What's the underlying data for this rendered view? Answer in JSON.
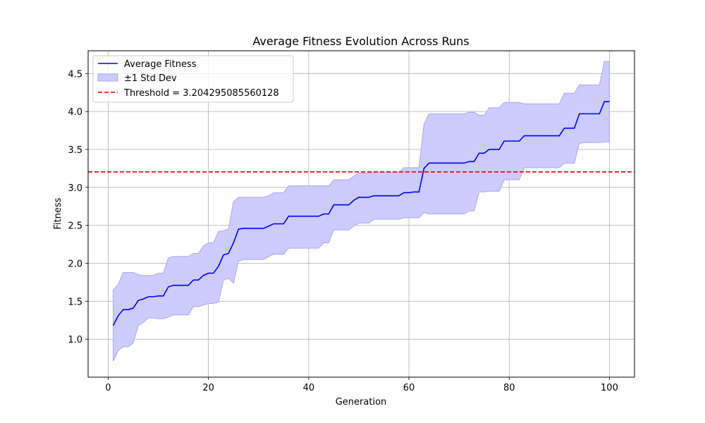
{
  "chart_data": {
    "type": "line",
    "title": "Average Fitness Evolution Across Runs",
    "xlabel": "Generation",
    "ylabel": "Fitness",
    "xlim": [
      -4,
      105
    ],
    "ylim": [
      0.5,
      4.8
    ],
    "xticks": [
      0,
      20,
      40,
      60,
      80,
      100
    ],
    "yticks": [
      1.0,
      1.5,
      2.0,
      2.5,
      3.0,
      3.5,
      4.0,
      4.5
    ],
    "xtick_labels": [
      "0",
      "20",
      "40",
      "60",
      "80",
      "100"
    ],
    "ytick_labels": [
      "1.0",
      "1.5",
      "2.0",
      "2.5",
      "3.0",
      "3.5",
      "4.0",
      "4.5"
    ],
    "grid": true,
    "legend_position": "top-left",
    "legend": [
      "Average Fitness",
      "±1 Std Dev",
      "Threshold = 3.204295085560128"
    ],
    "colors": {
      "mean": "#0000ff",
      "band_fill": "#ccccff",
      "band_edge": "#a8a8f0",
      "threshold": "#e00000"
    },
    "threshold": 3.204295085560128,
    "x": [
      1,
      2,
      3,
      4,
      5,
      6,
      7,
      8,
      9,
      10,
      11,
      12,
      13,
      14,
      15,
      16,
      17,
      18,
      19,
      20,
      21,
      22,
      23,
      24,
      25,
      26,
      27,
      28,
      29,
      30,
      31,
      32,
      33,
      34,
      35,
      36,
      37,
      38,
      39,
      40,
      41,
      42,
      43,
      44,
      45,
      46,
      47,
      48,
      49,
      50,
      51,
      52,
      53,
      54,
      55,
      56,
      57,
      58,
      59,
      60,
      61,
      62,
      63,
      64,
      65,
      66,
      67,
      68,
      69,
      70,
      71,
      72,
      73,
      74,
      75,
      76,
      77,
      78,
      79,
      80,
      81,
      82,
      83,
      84,
      85,
      86,
      87,
      88,
      89,
      90,
      91,
      92,
      93,
      94,
      95,
      96,
      97,
      98,
      99,
      100
    ],
    "series": [
      {
        "name": "Average Fitness",
        "values": [
          1.18,
          1.31,
          1.39,
          1.39,
          1.41,
          1.51,
          1.53,
          1.56,
          1.56,
          1.57,
          1.57,
          1.69,
          1.71,
          1.71,
          1.71,
          1.71,
          1.78,
          1.78,
          1.84,
          1.87,
          1.87,
          1.96,
          2.11,
          2.13,
          2.27,
          2.45,
          2.46,
          2.46,
          2.46,
          2.46,
          2.46,
          2.49,
          2.52,
          2.52,
          2.52,
          2.62,
          2.62,
          2.62,
          2.62,
          2.62,
          2.62,
          2.62,
          2.65,
          2.65,
          2.77,
          2.77,
          2.77,
          2.77,
          2.83,
          2.87,
          2.87,
          2.87,
          2.89,
          2.89,
          2.89,
          2.89,
          2.89,
          2.89,
          2.93,
          2.93,
          2.94,
          2.94,
          3.25,
          3.32,
          3.32,
          3.32,
          3.32,
          3.32,
          3.32,
          3.32,
          3.32,
          3.34,
          3.34,
          3.45,
          3.45,
          3.5,
          3.5,
          3.5,
          3.61,
          3.61,
          3.61,
          3.61,
          3.68,
          3.68,
          3.68,
          3.68,
          3.68,
          3.68,
          3.68,
          3.68,
          3.78,
          3.78,
          3.78,
          3.97,
          3.97,
          3.97,
          3.97,
          3.97,
          4.13,
          4.13
        ]
      },
      {
        "name": "±1 Std Dev",
        "lower": [
          0.71,
          0.85,
          0.9,
          0.9,
          0.95,
          1.18,
          1.22,
          1.28,
          1.28,
          1.27,
          1.27,
          1.29,
          1.32,
          1.32,
          1.32,
          1.32,
          1.43,
          1.43,
          1.45,
          1.47,
          1.47,
          1.49,
          1.78,
          1.8,
          1.74,
          2.03,
          2.05,
          2.05,
          2.05,
          2.05,
          2.05,
          2.09,
          2.12,
          2.12,
          2.12,
          2.2,
          2.2,
          2.2,
          2.2,
          2.2,
          2.2,
          2.2,
          2.27,
          2.27,
          2.44,
          2.44,
          2.44,
          2.44,
          2.49,
          2.53,
          2.53,
          2.53,
          2.58,
          2.58,
          2.58,
          2.58,
          2.58,
          2.58,
          2.6,
          2.6,
          2.6,
          2.6,
          2.67,
          2.65,
          2.65,
          2.65,
          2.65,
          2.65,
          2.65,
          2.65,
          2.65,
          2.69,
          2.69,
          2.94,
          2.94,
          2.95,
          2.95,
          2.95,
          3.1,
          3.1,
          3.1,
          3.1,
          3.26,
          3.26,
          3.26,
          3.26,
          3.26,
          3.26,
          3.26,
          3.26,
          3.32,
          3.32,
          3.32,
          3.58,
          3.59,
          3.59,
          3.59,
          3.59,
          3.6,
          3.6
        ],
        "upper": [
          1.65,
          1.72,
          1.88,
          1.88,
          1.88,
          1.85,
          1.84,
          1.84,
          1.84,
          1.87,
          1.87,
          2.07,
          2.09,
          2.09,
          2.09,
          2.09,
          2.13,
          2.13,
          2.23,
          2.27,
          2.27,
          2.42,
          2.43,
          2.45,
          2.81,
          2.87,
          2.87,
          2.87,
          2.87,
          2.87,
          2.87,
          2.89,
          2.93,
          2.93,
          2.93,
          3.02,
          3.02,
          3.02,
          3.02,
          3.02,
          3.02,
          3.02,
          3.02,
          3.02,
          3.1,
          3.1,
          3.1,
          3.1,
          3.15,
          3.19,
          3.19,
          3.19,
          3.2,
          3.2,
          3.2,
          3.2,
          3.2,
          3.2,
          3.26,
          3.26,
          3.26,
          3.26,
          3.83,
          3.97,
          3.97,
          3.97,
          3.97,
          3.97,
          3.97,
          3.97,
          3.97,
          3.99,
          3.99,
          3.95,
          3.95,
          4.05,
          4.05,
          4.05,
          4.12,
          4.12,
          4.12,
          4.12,
          4.1,
          4.1,
          4.1,
          4.1,
          4.1,
          4.1,
          4.1,
          4.1,
          4.24,
          4.24,
          4.24,
          4.35,
          4.35,
          4.35,
          4.35,
          4.35,
          4.66,
          4.66
        ]
      }
    ]
  }
}
